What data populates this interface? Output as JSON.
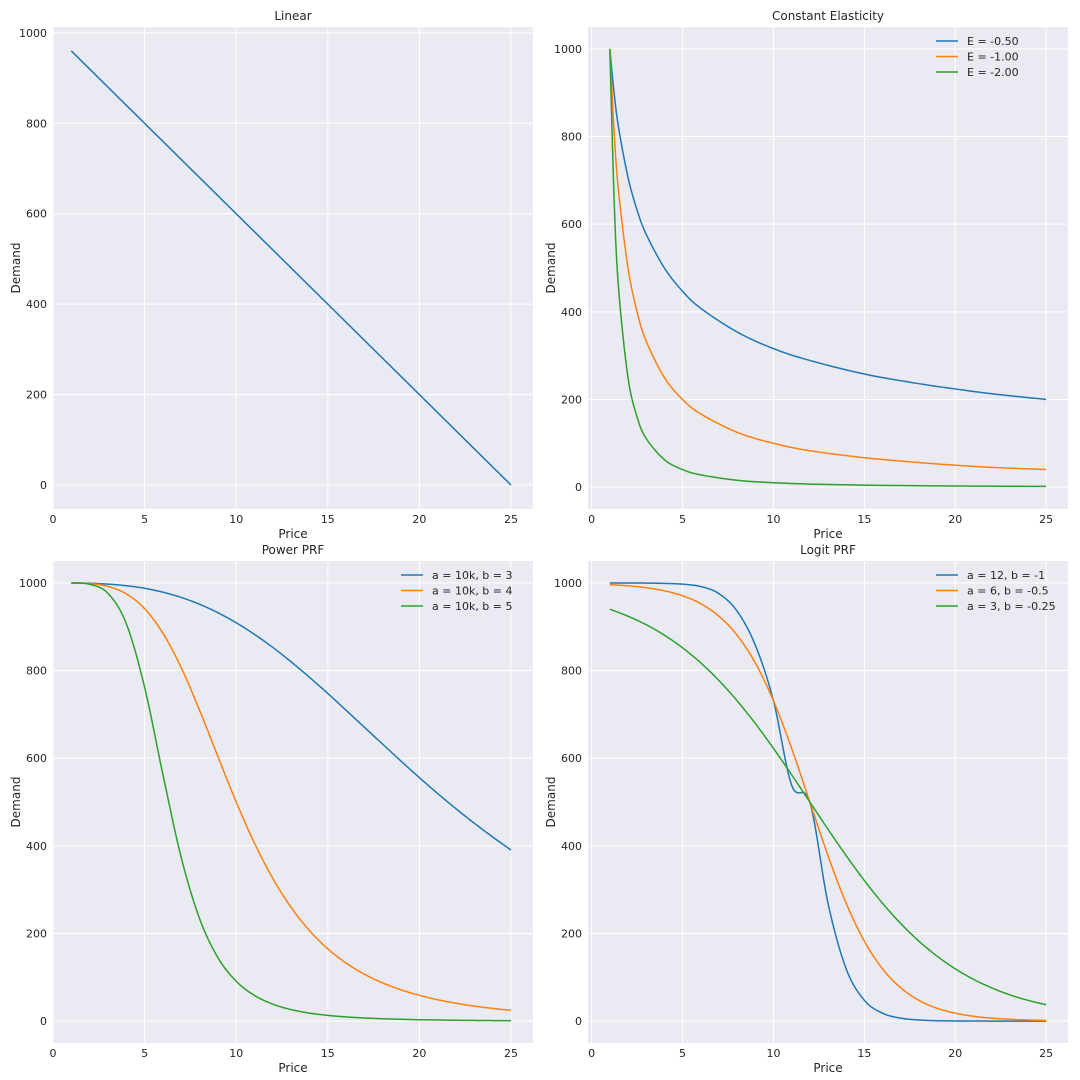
{
  "chart_data": [
    {
      "type": "line",
      "title": "Linear",
      "xlabel": "Price",
      "ylabel": "Demand",
      "xlim": [
        0,
        26.2
      ],
      "ylim": [
        -53,
        1013
      ],
      "xticks": [
        0,
        5,
        10,
        15,
        20,
        25
      ],
      "yticks": [
        0,
        200,
        400,
        600,
        800,
        1000
      ],
      "legend": null,
      "series": [
        {
          "name": "Linear",
          "color": "#1f77b4",
          "x": [
            1,
            25
          ],
          "y": [
            960,
            0
          ]
        }
      ]
    },
    {
      "type": "line",
      "title": "Constant Elasticity",
      "xlabel": "Price",
      "ylabel": "Demand",
      "xlim": [
        -0.2,
        26.2
      ],
      "ylim": [
        -50,
        1050
      ],
      "xticks": [
        0,
        5,
        10,
        15,
        20,
        25
      ],
      "yticks": [
        0,
        200,
        400,
        600,
        800,
        1000
      ],
      "legend": "top-right",
      "series": [
        {
          "name": "E = -0.50",
          "color": "#1f77b4",
          "x": [
            1,
            1.25,
            1.5,
            2,
            2.5,
            3,
            4,
            5,
            6,
            8,
            10,
            12,
            15,
            18,
            20,
            22,
            25
          ],
          "y": [
            1000,
            894,
            816,
            707,
            632,
            577,
            500,
            447,
            408,
            354,
            316,
            289,
            258,
            236,
            224,
            213,
            200
          ]
        },
        {
          "name": "E = -1.00",
          "color": "#ff7f0e",
          "x": [
            1,
            1.25,
            1.5,
            2,
            2.5,
            3,
            4,
            5,
            6,
            8,
            10,
            12,
            15,
            18,
            20,
            22,
            25
          ],
          "y": [
            1000,
            800,
            667,
            500,
            400,
            333,
            250,
            200,
            167,
            125,
            100,
            83,
            67,
            56,
            50,
            45,
            40
          ]
        },
        {
          "name": "E = -2.00",
          "color": "#2ca02c",
          "x": [
            1,
            1.25,
            1.5,
            2,
            2.5,
            3,
            4,
            5,
            6,
            8,
            10,
            12,
            15,
            18,
            20,
            22,
            25
          ],
          "y": [
            1000,
            640,
            444,
            250,
            160,
            111,
            62.5,
            40,
            27.8,
            15.6,
            10,
            6.9,
            4.4,
            3.1,
            2.5,
            2.1,
            1.6
          ]
        }
      ]
    },
    {
      "type": "line",
      "title": "Power PRF",
      "xlabel": "Price",
      "ylabel": "Demand",
      "xlim": [
        0,
        26.2
      ],
      "ylim": [
        -50,
        1050
      ],
      "xticks": [
        0,
        5,
        10,
        15,
        20,
        25
      ],
      "yticks": [
        0,
        200,
        400,
        600,
        800,
        1000
      ],
      "legend": "top-right",
      "series": [
        {
          "name": "a = 10k, b = 3",
          "color": "#1f77b4",
          "x": [
            1,
            2,
            3,
            4,
            5,
            6,
            7,
            8,
            9,
            10,
            11,
            12,
            13,
            14,
            15,
            16,
            17,
            18,
            19,
            20,
            21,
            22,
            23,
            24,
            25
          ],
          "y": [
            999.9,
            999.2,
            997.3,
            993.6,
            987.7,
            978.8,
            966.8,
            951.3,
            932.0,
            909.1,
            882.5,
            852.7,
            819.8,
            784.6,
            747.7,
            709.3,
            670.5,
            631.8,
            593.1,
            555.6,
            519.2,
            484.5,
            451.4,
            420.2,
            390.2
          ]
        },
        {
          "name": "a = 10k, b = 4",
          "color": "#ff7f0e",
          "x": [
            1,
            2,
            3,
            4,
            5,
            6,
            7,
            8,
            9,
            10,
            11,
            12,
            13,
            14,
            15,
            16,
            17,
            18,
            19,
            20,
            21,
            22,
            23,
            24,
            25
          ],
          "y": [
            999.9,
            998.4,
            992.0,
            975.0,
            941.2,
            885.3,
            806.5,
            709.3,
            603.9,
            500.0,
            405.9,
            325.4,
            259.3,
            206.5,
            164.9,
            132.4,
            106.9,
            87.0,
            71.2,
            58.8,
            48.8,
            40.7,
            34.2,
            28.9,
            24.6
          ]
        },
        {
          "name": "a = 10k, b = 5",
          "color": "#2ca02c",
          "x": [
            1,
            2,
            3,
            4,
            5,
            6,
            7,
            8,
            9,
            10,
            11,
            12,
            13,
            14,
            15,
            16,
            17,
            18,
            19,
            20,
            21,
            22,
            23,
            24,
            25
          ],
          "y": [
            999.9,
            996.8,
            976.3,
            907.1,
            761.9,
            562.6,
            373.1,
            233.8,
            144.9,
            90.9,
            58.5,
            38.6,
            26.2,
            18.2,
            13.0,
            9.5,
            7.1,
            5.3,
            4.1,
            3.1,
            2.5,
            1.9,
            1.5,
            1.2,
            1.0
          ]
        }
      ]
    },
    {
      "type": "line",
      "title": "Logit PRF",
      "xlabel": "Price",
      "ylabel": "Demand",
      "xlim": [
        -0.2,
        26.2
      ],
      "ylim": [
        -50,
        1050
      ],
      "xticks": [
        0,
        5,
        10,
        15,
        20,
        25
      ],
      "yticks": [
        0,
        200,
        400,
        600,
        800,
        1000
      ],
      "legend": "top-right",
      "series": [
        {
          "name": "a = 12, b = -1",
          "color": "#1f77b4",
          "x": [
            1,
            2,
            3,
            4,
            5,
            6,
            7,
            8,
            9,
            10,
            11,
            12,
            13,
            14,
            15,
            16,
            17,
            18,
            19,
            20,
            21,
            22,
            23,
            24,
            25
          ],
          "y": [
            999.9,
            999.8,
            999.6,
            998.9,
            997.1,
            991.8,
            975.6,
            935.7,
            858.1,
            731.1,
            538.0,
            500.0,
            268.9,
            119.2,
            47.4,
            18.0,
            6.7,
            2.5,
            0.9,
            0.3,
            0.1,
            0.05,
            0.02,
            0.01,
            0.0
          ]
        },
        {
          "name": "a = 6, b = -0.5",
          "color": "#ff7f0e",
          "x": [
            1,
            2,
            3,
            4,
            5,
            6,
            7,
            8,
            9,
            10,
            11,
            12,
            13,
            14,
            15,
            16,
            17,
            18,
            19,
            20,
            21,
            22,
            23,
            24,
            25
          ],
          "y": [
            995.9,
            993.3,
            989.0,
            982.0,
            970.7,
            952.6,
            924.1,
            880.8,
            817.6,
            731.1,
            622.5,
            500.0,
            377.5,
            268.9,
            182.4,
            119.2,
            75.9,
            47.4,
            29.3,
            18.0,
            11.0,
            6.7,
            4.1,
            2.5,
            1.5
          ]
        },
        {
          "name": "a = 3, b = -0.25",
          "color": "#2ca02c",
          "x": [
            1,
            2,
            3,
            4,
            5,
            6,
            7,
            8,
            9,
            10,
            11,
            12,
            13,
            14,
            15,
            16,
            17,
            18,
            19,
            20,
            21,
            22,
            23,
            24,
            25
          ],
          "y": [
            940.0,
            924.1,
            904.7,
            880.8,
            851.9,
            817.6,
            777.3,
            731.1,
            679.2,
            622.5,
            562.2,
            500.0,
            437.8,
            377.5,
            320.8,
            268.9,
            222.7,
            182.4,
            148.1,
            119.2,
            95.3,
            75.9,
            59.9,
            47.4,
            37.3
          ]
        }
      ]
    }
  ]
}
